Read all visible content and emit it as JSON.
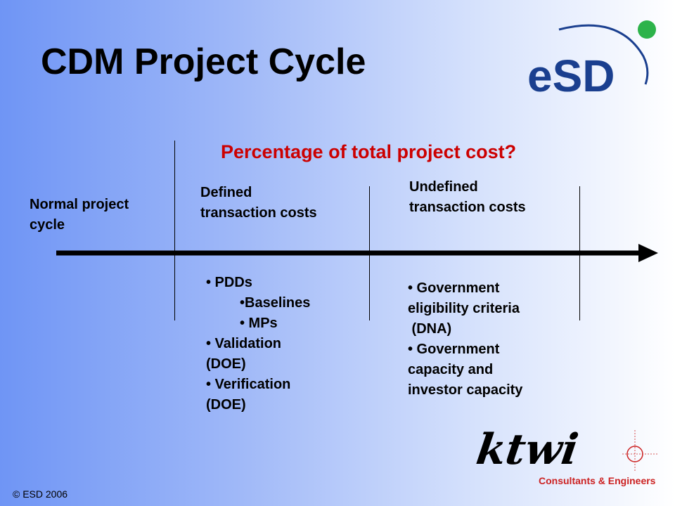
{
  "slide": {
    "title": "CDM Project Cycle",
    "subtitle": "Percentage of total project cost?",
    "footer": "© ESD 2006"
  },
  "logos": {
    "esd": "eSD",
    "ktwi_mark": "ktwi",
    "ktwi_tagline": "Consultants & Engineers"
  },
  "phases": [
    {
      "lines": [
        "Normal project",
        "cycle"
      ]
    },
    {
      "lines": [
        "Defined",
        "transaction costs"
      ]
    },
    {
      "lines": [
        "Undefined",
        "transaction costs"
      ]
    }
  ],
  "defined_items": [
    "• PDDs",
    "•Baselines",
    "• MPs",
    "• Validation",
    "(DOE)",
    "• Verification",
    "(DOE)"
  ],
  "undefined_items": [
    "• Government",
    "eligibility criteria",
    " (DNA)",
    "• Government",
    "capacity and",
    "investor capacity"
  ],
  "colors": {
    "title": "#000000",
    "subtitle": "#cc0000",
    "esd_blue": "#1a3f8f",
    "esd_green": "#2db34a",
    "ktwi_red": "#cc2222"
  }
}
